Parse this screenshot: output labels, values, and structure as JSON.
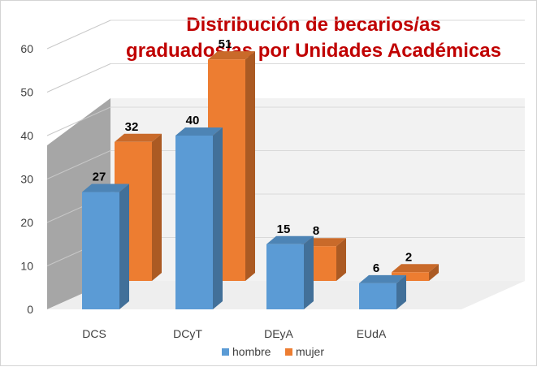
{
  "chart_data": {
    "type": "bar",
    "title_lines": [
      "Distribución de becarios/as",
      "graduados/as por Unidades Académicas"
    ],
    "categories": [
      "DCS",
      "DCyT",
      "DEyA",
      "EUdA"
    ],
    "series": [
      {
        "name": "hombre",
        "values": [
          27,
          40,
          15,
          6
        ],
        "color": "#5b9bd5"
      },
      {
        "name": "mujer",
        "values": [
          32,
          51,
          8,
          2
        ],
        "color": "#ed7d31"
      }
    ],
    "y_ticks": [
      "0",
      "10",
      "20",
      "30",
      "40",
      "50",
      "60"
    ],
    "ylim": [
      0,
      60
    ],
    "grid": true,
    "legend_position": "bottom",
    "style": "3d-clustered-column",
    "title_color": "#c00000"
  }
}
